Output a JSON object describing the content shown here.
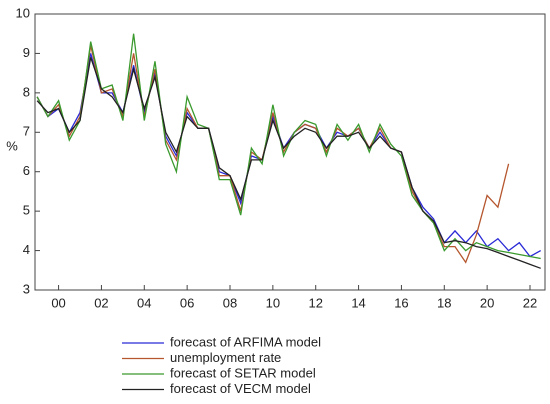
{
  "chart_data": {
    "type": "line",
    "ylabel": "%",
    "x": [
      1999,
      1999.5,
      2000,
      2000.5,
      2001,
      2001.5,
      2002,
      2002.5,
      2003,
      2003.5,
      2004,
      2004.5,
      2005,
      2005.5,
      2006,
      2006.5,
      2007,
      2007.5,
      2008,
      2008.5,
      2009,
      2009.5,
      2010,
      2010.5,
      2011,
      2011.5,
      2012,
      2012.5,
      2013,
      2013.5,
      2014,
      2014.5,
      2015,
      2015.5,
      2016,
      2016.5,
      2017,
      2017.5,
      2018,
      2018.5,
      2019,
      2019.5,
      2020,
      2020.5,
      2021,
      2021.5,
      2022,
      2022.5
    ],
    "series": [
      {
        "name": "forecast of ARFIMA model",
        "color": "#2a2ad6",
        "values": [
          7.9,
          7.4,
          7.6,
          7.0,
          7.5,
          9.0,
          8.0,
          8.0,
          7.5,
          8.7,
          7.5,
          8.5,
          6.9,
          6.4,
          7.5,
          7.1,
          7.1,
          6.0,
          5.9,
          5.2,
          6.4,
          6.3,
          7.4,
          6.6,
          7.0,
          7.2,
          7.1,
          6.6,
          7.0,
          6.9,
          7.1,
          6.6,
          7.0,
          6.6,
          6.5,
          5.6,
          5.1,
          4.8,
          4.2,
          4.5,
          4.2,
          4.5,
          4.1,
          4.3,
          4.0,
          4.2,
          3.85,
          4.0
        ]
      },
      {
        "name": "unemployment rate",
        "color": "#b5562e",
        "values": [
          7.9,
          7.4,
          7.7,
          6.9,
          7.4,
          9.2,
          8.0,
          8.1,
          7.4,
          9.0,
          7.4,
          8.6,
          6.8,
          6.3,
          7.6,
          7.1,
          7.1,
          5.9,
          5.9,
          5.0,
          6.5,
          6.3,
          7.5,
          6.5,
          7.0,
          7.2,
          7.1,
          6.5,
          7.1,
          6.9,
          7.1,
          6.6,
          7.1,
          6.6,
          6.5,
          5.5,
          5.0,
          4.7,
          4.1,
          4.1,
          3.7,
          4.4,
          5.4,
          5.1,
          6.2,
          null,
          null,
          null
        ]
      },
      {
        "name": "forecast of SETAR model",
        "color": "#3a9a2e",
        "values": [
          7.9,
          7.4,
          7.8,
          6.8,
          7.3,
          9.3,
          8.1,
          8.2,
          7.3,
          9.5,
          7.3,
          8.8,
          6.7,
          6.0,
          7.9,
          7.2,
          7.1,
          5.8,
          5.8,
          4.9,
          6.6,
          6.2,
          7.7,
          6.4,
          7.0,
          7.3,
          7.2,
          6.4,
          7.2,
          6.8,
          7.2,
          6.5,
          7.2,
          6.7,
          6.4,
          5.4,
          5.0,
          4.7,
          4.0,
          4.3,
          4.0,
          4.2,
          4.1,
          4.0,
          3.95,
          3.9,
          3.85,
          3.8
        ]
      },
      {
        "name": "forecast of VECM model",
        "color": "#222222",
        "values": [
          7.8,
          7.5,
          7.6,
          7.0,
          7.3,
          8.9,
          8.1,
          7.9,
          7.5,
          8.6,
          7.6,
          8.4,
          7.0,
          6.5,
          7.4,
          7.1,
          7.1,
          6.1,
          5.9,
          5.3,
          6.3,
          6.3,
          7.3,
          6.6,
          6.9,
          7.1,
          7.0,
          6.6,
          6.9,
          6.9,
          7.0,
          6.6,
          6.9,
          6.6,
          6.5,
          5.6,
          5.0,
          4.75,
          4.2,
          4.25,
          4.2,
          4.1,
          4.05,
          3.95,
          3.85,
          3.75,
          3.65,
          3.55
        ]
      }
    ],
    "xlim": [
      1998.9,
      2022.7
    ],
    "ylim": [
      3,
      10
    ],
    "yticks": [
      3,
      4,
      5,
      6,
      7,
      8,
      9,
      10
    ],
    "xticks": [
      {
        "value": 2000,
        "label": "00"
      },
      {
        "value": 2002,
        "label": "02"
      },
      {
        "value": 2004,
        "label": "04"
      },
      {
        "value": 2006,
        "label": "06"
      },
      {
        "value": 2008,
        "label": "08"
      },
      {
        "value": 2010,
        "label": "10"
      },
      {
        "value": 2012,
        "label": "12"
      },
      {
        "value": 2014,
        "label": "14"
      },
      {
        "value": 2016,
        "label": "16"
      },
      {
        "value": 2018,
        "label": "18"
      },
      {
        "value": 2020,
        "label": "20"
      },
      {
        "value": 2022,
        "label": "22"
      }
    ]
  }
}
